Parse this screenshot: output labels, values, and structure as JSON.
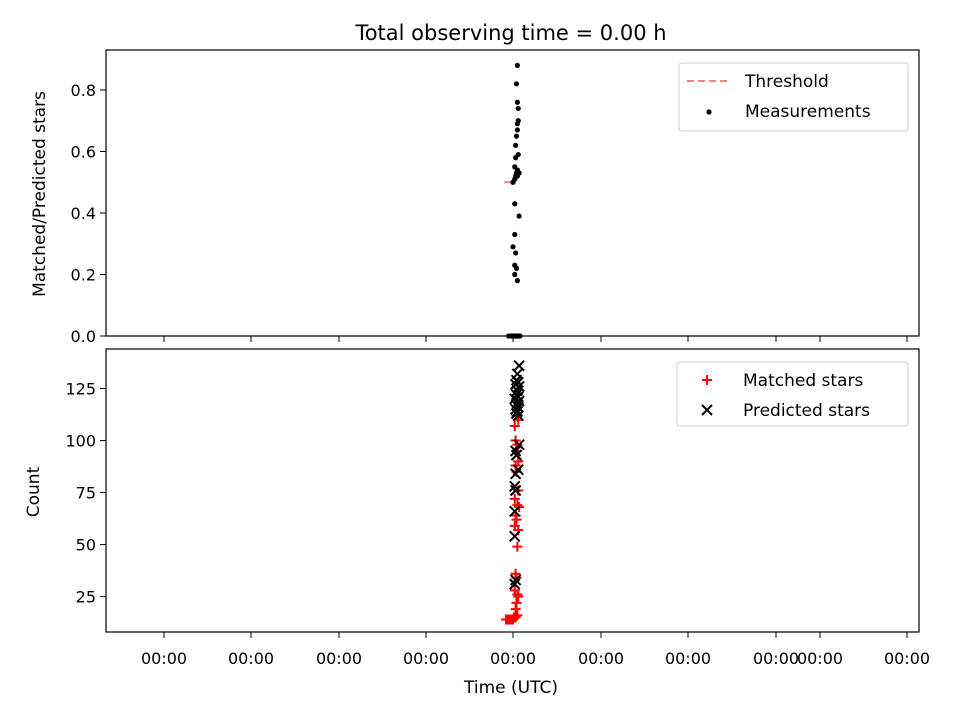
{
  "chart_data": {
    "title": "Total observing time = 0.00 h",
    "xlabel": "Time (UTC)",
    "x_tick_labels": [
      "00:00",
      "00:00",
      "00:00",
      "00:00",
      "00:00",
      "00:00",
      "00:00",
      "00:00",
      "00:00",
      "00:00"
    ],
    "panels": [
      {
        "type": "scatter",
        "ylabel": "Matched/Predicted stars",
        "ylim": [
          0,
          0.93
        ],
        "y_ticks": [
          0.0,
          0.2,
          0.4,
          0.6,
          0.8
        ],
        "y_tick_labels": [
          "0.0",
          "0.2",
          "0.4",
          "0.6",
          "0.8"
        ],
        "legend_position": "top-right",
        "series": [
          {
            "name": "Threshold",
            "kind": "dashed-line",
            "color": "#ff7f7f",
            "y": 0.5,
            "x_range": [
              -0.1,
              0.0
            ]
          },
          {
            "name": "Measurements",
            "kind": "dots",
            "color": "#000000",
            "x": [
              0.05,
              0.04,
              0.05,
              0.06,
              0.06,
              0.05,
              0.05,
              0.04,
              0.03,
              0.03,
              0.06,
              0.02,
              0.05,
              0.04,
              0.03,
              0.02,
              0.07,
              0.02,
              0.05,
              0.0,
              0.07,
              0.02,
              0.0,
              0.03,
              0.02,
              0.04,
              0.02,
              0.05,
              0.05,
              -0.05,
              -0.02,
              0.0,
              0.02,
              0.04,
              0.06,
              0.08
            ],
            "y": [
              0.88,
              0.82,
              0.76,
              0.74,
              0.7,
              0.69,
              0.67,
              0.65,
              0.62,
              0.58,
              0.59,
              0.55,
              0.54,
              0.53,
              0.52,
              0.51,
              0.39,
              0.43,
              0.52,
              0.5,
              0.53,
              0.33,
              0.29,
              0.27,
              0.23,
              0.22,
              0.2,
              0.18,
              0.0,
              0.0,
              0.0,
              0.0,
              0.0,
              0.0,
              0.0,
              0.0
            ]
          }
        ]
      },
      {
        "type": "scatter",
        "ylabel": "Count",
        "ylim": [
          8,
          144
        ],
        "y_ticks": [
          25,
          50,
          75,
          100,
          125
        ],
        "y_tick_labels": [
          "25",
          "50",
          "75",
          "100",
          "125"
        ],
        "legend_position": "top-right",
        "series": [
          {
            "name": "Matched stars",
            "kind": "plus",
            "color": "#ff0000",
            "x": [
              0.03,
              0.05,
              0.04,
              0.06,
              0.02,
              0.03,
              0.05,
              0.04,
              0.06,
              0.03,
              0.04,
              0.06,
              0.02,
              0.05,
              0.07,
              0.03,
              0.04,
              0.02,
              0.06,
              0.05,
              0.03,
              0.04,
              0.02,
              0.05,
              0.06,
              0.04,
              0.03,
              0.05,
              -0.08,
              -0.06,
              -0.04,
              -0.02,
              0.0,
              0.01,
              0.03
            ],
            "y": [
              119,
              116,
              112,
              110,
              107,
              100,
              98,
              95,
              90,
              88,
              85,
              76,
              72,
              69,
              68,
              64,
              62,
              59,
              57,
              49,
              36,
              34,
              28,
              26,
              25,
              22,
              19,
              16,
              14,
              14,
              14,
              14,
              14,
              15,
              15
            ]
          },
          {
            "name": "Predicted stars",
            "kind": "x",
            "color": "#000000",
            "x": [
              0.07,
              0.05,
              0.04,
              0.06,
              0.03,
              0.07,
              0.05,
              0.04,
              0.06,
              0.02,
              0.07,
              0.05,
              0.04,
              0.06,
              0.03,
              0.05,
              0.04,
              0.06,
              0.07,
              0.03,
              0.04,
              0.06,
              0.03,
              0.02,
              0.03,
              0.02,
              0.02,
              0.03,
              0.02
            ],
            "y": [
              136,
              132,
              129,
              128,
              127,
              126,
              124,
              122,
              121,
              120,
              119,
              118,
              117,
              116,
              115,
              114,
              113,
              112,
              98,
              95,
              93,
              86,
              84,
              78,
              76,
              66,
              54,
              33,
              31
            ]
          }
        ]
      }
    ]
  }
}
